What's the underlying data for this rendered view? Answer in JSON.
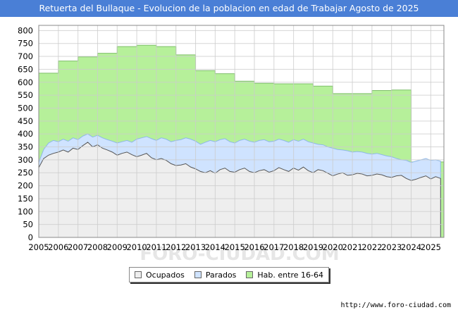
{
  "header": {
    "title": "Retuerta del Bullaque - Evolucion de la poblacion en edad de Trabajar Agosto de 2025",
    "background_color": "#4a7fd6"
  },
  "source": "http://www.foro-ciudad.com",
  "watermark": "FORO-CIUDAD.COM",
  "legend": [
    {
      "label": "Ocupados",
      "color": "#eeeeee"
    },
    {
      "label": "Parados",
      "color": "#cfe3ff"
    },
    {
      "label": "Hab. entre 16-64",
      "color": "#b6f09a"
    }
  ],
  "chart_data": {
    "type": "area",
    "title": "Retuerta del Bullaque - Evolucion de la poblacion en edad de Trabajar Agosto de 2025",
    "xlabel": "",
    "ylabel": "",
    "ylim": [
      0,
      820
    ],
    "xlim": [
      2005,
      2025.67
    ],
    "grid": true,
    "legend_position": "bottom",
    "x_ticks": [
      "2005",
      "2006",
      "2007",
      "2008",
      "2009",
      "2010",
      "2011",
      "2012",
      "2013",
      "2014",
      "2015",
      "2016",
      "2017",
      "2018",
      "2019",
      "2020",
      "2021",
      "2022",
      "2023",
      "2024",
      "2025"
    ],
    "y_ticks": [
      0,
      50,
      100,
      150,
      200,
      250,
      300,
      350,
      400,
      450,
      500,
      550,
      600,
      650,
      700,
      750,
      800
    ],
    "series": [
      {
        "name": "Hab. entre 16-64",
        "color": "#b6f09a",
        "line_color": "#7fbf6a",
        "x": [
          2005,
          2006,
          2007,
          2008,
          2009,
          2010,
          2011,
          2012,
          2013,
          2014,
          2015,
          2016,
          2017,
          2018,
          2019,
          2020,
          2021,
          2022,
          2023,
          2024
        ],
        "values": [
          635,
          682,
          698,
          712,
          738,
          743,
          738,
          706,
          645,
          633,
          604,
          596,
          594,
          594,
          585,
          556,
          556,
          568,
          570,
          292
        ]
      },
      {
        "name": "Parados",
        "color": "#cfe3ff",
        "line_color": "#8fb8e8",
        "x": [
          2005.0,
          2005.25,
          2005.5,
          2005.75,
          2006.0,
          2006.25,
          2006.5,
          2006.75,
          2007.0,
          2007.25,
          2007.5,
          2007.75,
          2008.0,
          2008.25,
          2008.5,
          2008.75,
          2009.0,
          2009.25,
          2009.5,
          2009.75,
          2010.0,
          2010.25,
          2010.5,
          2010.75,
          2011.0,
          2011.25,
          2011.5,
          2011.75,
          2012.0,
          2012.25,
          2012.5,
          2012.75,
          2013.0,
          2013.25,
          2013.5,
          2013.75,
          2014.0,
          2014.25,
          2014.5,
          2014.75,
          2015.0,
          2015.25,
          2015.5,
          2015.75,
          2016.0,
          2016.25,
          2016.5,
          2016.75,
          2017.0,
          2017.25,
          2017.5,
          2017.75,
          2018.0,
          2018.25,
          2018.5,
          2018.75,
          2019.0,
          2019.25,
          2019.5,
          2019.75,
          2020.0,
          2020.25,
          2020.5,
          2020.75,
          2021.0,
          2021.25,
          2021.5,
          2021.75,
          2022.0,
          2022.25,
          2022.5,
          2022.75,
          2023.0,
          2023.25,
          2023.5,
          2023.75,
          2024.0,
          2024.25,
          2024.5,
          2024.75,
          2025.0,
          2025.25,
          2025.5
        ],
        "values": [
          290,
          340,
          365,
          375,
          370,
          380,
          372,
          385,
          378,
          392,
          400,
          388,
          395,
          385,
          378,
          372,
          365,
          370,
          375,
          368,
          380,
          385,
          390,
          382,
          375,
          385,
          380,
          370,
          375,
          378,
          385,
          380,
          372,
          360,
          368,
          375,
          370,
          378,
          382,
          370,
          365,
          375,
          380,
          372,
          368,
          375,
          378,
          370,
          372,
          380,
          375,
          368,
          378,
          372,
          380,
          370,
          365,
          360,
          358,
          350,
          345,
          340,
          338,
          335,
          330,
          332,
          330,
          325,
          322,
          325,
          320,
          315,
          312,
          305,
          300,
          298,
          290,
          295,
          300,
          305,
          298,
          300,
          295
        ]
      },
      {
        "name": "Ocupados",
        "color": "#eeeeee",
        "line_color": "#555555",
        "x": [
          2005.0,
          2005.25,
          2005.5,
          2005.75,
          2006.0,
          2006.25,
          2006.5,
          2006.75,
          2007.0,
          2007.25,
          2007.5,
          2007.75,
          2008.0,
          2008.25,
          2008.5,
          2008.75,
          2009.0,
          2009.25,
          2009.5,
          2009.75,
          2010.0,
          2010.25,
          2010.5,
          2010.75,
          2011.0,
          2011.25,
          2011.5,
          2011.75,
          2012.0,
          2012.25,
          2012.5,
          2012.75,
          2013.0,
          2013.25,
          2013.5,
          2013.75,
          2014.0,
          2014.25,
          2014.5,
          2014.75,
          2015.0,
          2015.25,
          2015.5,
          2015.75,
          2016.0,
          2016.25,
          2016.5,
          2016.75,
          2017.0,
          2017.25,
          2017.5,
          2017.75,
          2018.0,
          2018.25,
          2018.5,
          2018.75,
          2019.0,
          2019.25,
          2019.5,
          2019.75,
          2020.0,
          2020.25,
          2020.5,
          2020.75,
          2021.0,
          2021.25,
          2021.5,
          2021.75,
          2022.0,
          2022.25,
          2022.5,
          2022.75,
          2023.0,
          2023.25,
          2023.5,
          2023.75,
          2024.0,
          2024.25,
          2024.5,
          2024.75,
          2025.0,
          2025.25,
          2025.5
        ],
        "values": [
          270,
          305,
          318,
          325,
          330,
          338,
          330,
          345,
          340,
          355,
          368,
          350,
          358,
          345,
          338,
          330,
          318,
          325,
          330,
          320,
          312,
          318,
          325,
          308,
          300,
          305,
          298,
          285,
          278,
          280,
          285,
          272,
          265,
          255,
          250,
          258,
          248,
          262,
          268,
          255,
          252,
          262,
          268,
          255,
          250,
          258,
          262,
          252,
          258,
          270,
          262,
          255,
          268,
          260,
          272,
          258,
          250,
          262,
          258,
          248,
          238,
          245,
          250,
          240,
          242,
          248,
          245,
          238,
          240,
          245,
          242,
          235,
          232,
          238,
          240,
          228,
          220,
          225,
          232,
          238,
          226,
          235,
          228
        ]
      }
    ]
  }
}
